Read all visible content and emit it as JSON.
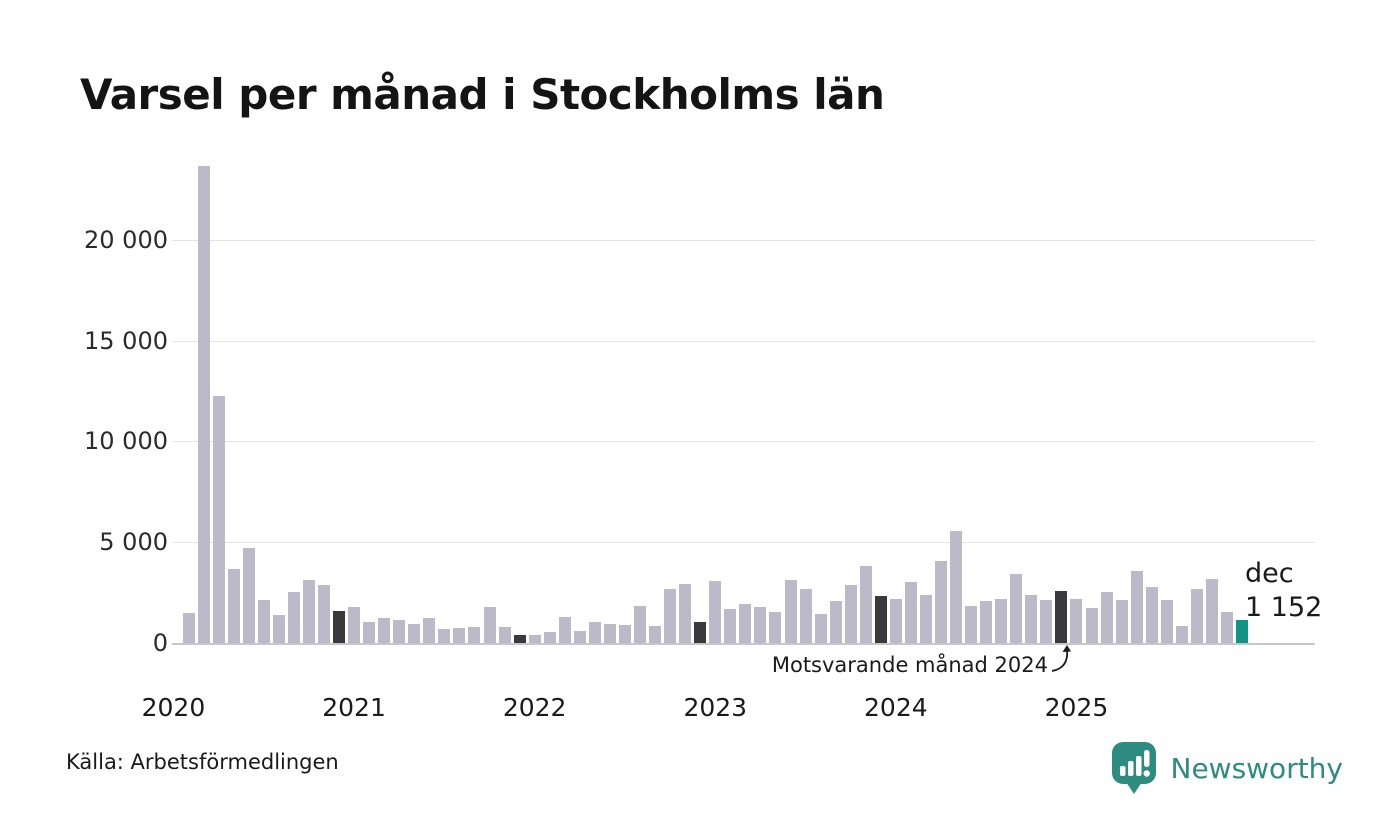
{
  "title": "Varsel per månad i Stockholms län",
  "source": "Källa: Arbetsförmedlingen",
  "brand": {
    "name": "Newsworthy"
  },
  "annotation": {
    "text": "Motsvarande månad 2024"
  },
  "colors": {
    "bar": "#bcbac8",
    "dark": "#3a393e",
    "accent": "#119484",
    "brand": "#2e8b80",
    "grid": "#e4e4e7",
    "baseline": "#c6c6cc"
  },
  "chart_data": {
    "type": "bar",
    "title": "Varsel per månad i Stockholms län",
    "xlabel": "",
    "ylabel": "",
    "ylim": [
      0,
      24000
    ],
    "yticks": [
      0,
      5000,
      10000,
      15000,
      20000
    ],
    "ytick_labels": [
      "0",
      "5 000",
      "10 000",
      "15 000",
      "20 000"
    ],
    "grid": "horizontal",
    "legend": "none",
    "highlight_note": "dark bars = december each year; teal bar = latest month (dec 2025)",
    "last_point_label": {
      "line1": "dec",
      "line2": "1 152"
    },
    "year_ticks": [
      {
        "label": "2020",
        "jan_index": -1
      },
      {
        "label": "2021",
        "jan_index": 11
      },
      {
        "label": "2022",
        "jan_index": 23
      },
      {
        "label": "2023",
        "jan_index": 35
      },
      {
        "label": "2024",
        "jan_index": 47
      },
      {
        "label": "2025",
        "jan_index": 59
      }
    ],
    "months": [
      {
        "month": "2020-feb",
        "value": 1500,
        "kind": "normal"
      },
      {
        "month": "2020-mar",
        "value": 23650,
        "kind": "normal"
      },
      {
        "month": "2020-apr",
        "value": 12250,
        "kind": "normal"
      },
      {
        "month": "2020-maj",
        "value": 3650,
        "kind": "normal"
      },
      {
        "month": "2020-jun",
        "value": 4700,
        "kind": "normal"
      },
      {
        "month": "2020-jul",
        "value": 2150,
        "kind": "normal"
      },
      {
        "month": "2020-aug",
        "value": 1400,
        "kind": "normal"
      },
      {
        "month": "2020-sep",
        "value": 2550,
        "kind": "normal"
      },
      {
        "month": "2020-okt",
        "value": 3150,
        "kind": "normal"
      },
      {
        "month": "2020-nov",
        "value": 2900,
        "kind": "normal"
      },
      {
        "month": "2020-dec",
        "value": 1600,
        "kind": "december"
      },
      {
        "month": "2021-jan",
        "value": 1800,
        "kind": "normal"
      },
      {
        "month": "2021-feb",
        "value": 1050,
        "kind": "normal"
      },
      {
        "month": "2021-mar",
        "value": 1250,
        "kind": "normal"
      },
      {
        "month": "2021-apr",
        "value": 1150,
        "kind": "normal"
      },
      {
        "month": "2021-maj",
        "value": 950,
        "kind": "normal"
      },
      {
        "month": "2021-jun",
        "value": 1250,
        "kind": "normal"
      },
      {
        "month": "2021-jul",
        "value": 700,
        "kind": "normal"
      },
      {
        "month": "2021-aug",
        "value": 750,
        "kind": "normal"
      },
      {
        "month": "2021-sep",
        "value": 770,
        "kind": "normal"
      },
      {
        "month": "2021-okt",
        "value": 1780,
        "kind": "normal"
      },
      {
        "month": "2021-nov",
        "value": 790,
        "kind": "normal"
      },
      {
        "month": "2021-dec",
        "value": 410,
        "kind": "december"
      },
      {
        "month": "2022-jan",
        "value": 410,
        "kind": "normal"
      },
      {
        "month": "2022-feb",
        "value": 560,
        "kind": "normal"
      },
      {
        "month": "2022-mar",
        "value": 1290,
        "kind": "normal"
      },
      {
        "month": "2022-apr",
        "value": 600,
        "kind": "normal"
      },
      {
        "month": "2022-maj",
        "value": 1060,
        "kind": "normal"
      },
      {
        "month": "2022-jun",
        "value": 950,
        "kind": "normal"
      },
      {
        "month": "2022-jul",
        "value": 900,
        "kind": "normal"
      },
      {
        "month": "2022-aug",
        "value": 1850,
        "kind": "normal"
      },
      {
        "month": "2022-sep",
        "value": 820,
        "kind": "normal"
      },
      {
        "month": "2022-okt",
        "value": 2700,
        "kind": "normal"
      },
      {
        "month": "2022-nov",
        "value": 2930,
        "kind": "normal"
      },
      {
        "month": "2022-dec",
        "value": 1020,
        "kind": "december"
      },
      {
        "month": "2023-jan",
        "value": 3100,
        "kind": "normal"
      },
      {
        "month": "2023-feb",
        "value": 1700,
        "kind": "normal"
      },
      {
        "month": "2023-mar",
        "value": 1930,
        "kind": "normal"
      },
      {
        "month": "2023-apr",
        "value": 1800,
        "kind": "normal"
      },
      {
        "month": "2023-maj",
        "value": 1560,
        "kind": "normal"
      },
      {
        "month": "2023-jun",
        "value": 3130,
        "kind": "normal"
      },
      {
        "month": "2023-jul",
        "value": 2700,
        "kind": "normal"
      },
      {
        "month": "2023-aug",
        "value": 1450,
        "kind": "normal"
      },
      {
        "month": "2023-sep",
        "value": 2100,
        "kind": "normal"
      },
      {
        "month": "2023-okt",
        "value": 2900,
        "kind": "normal"
      },
      {
        "month": "2023-nov",
        "value": 3840,
        "kind": "normal"
      },
      {
        "month": "2023-dec",
        "value": 2310,
        "kind": "december"
      },
      {
        "month": "2024-jan",
        "value": 2180,
        "kind": "normal"
      },
      {
        "month": "2024-feb",
        "value": 3050,
        "kind": "normal"
      },
      {
        "month": "2024-mar",
        "value": 2390,
        "kind": "normal"
      },
      {
        "month": "2024-apr",
        "value": 4090,
        "kind": "normal"
      },
      {
        "month": "2024-maj",
        "value": 5540,
        "kind": "normal"
      },
      {
        "month": "2024-jun",
        "value": 1850,
        "kind": "normal"
      },
      {
        "month": "2024-jul",
        "value": 2100,
        "kind": "normal"
      },
      {
        "month": "2024-aug",
        "value": 2190,
        "kind": "normal"
      },
      {
        "month": "2024-sep",
        "value": 3420,
        "kind": "normal"
      },
      {
        "month": "2024-okt",
        "value": 2390,
        "kind": "normal"
      },
      {
        "month": "2024-nov",
        "value": 2150,
        "kind": "normal"
      },
      {
        "month": "2024-dec",
        "value": 2590,
        "kind": "december"
      },
      {
        "month": "2025-jan",
        "value": 2180,
        "kind": "normal"
      },
      {
        "month": "2025-feb",
        "value": 1740,
        "kind": "normal"
      },
      {
        "month": "2025-mar",
        "value": 2520,
        "kind": "normal"
      },
      {
        "month": "2025-apr",
        "value": 2110,
        "kind": "normal"
      },
      {
        "month": "2025-maj",
        "value": 3550,
        "kind": "normal"
      },
      {
        "month": "2025-jun",
        "value": 2770,
        "kind": "normal"
      },
      {
        "month": "2025-jul",
        "value": 2140,
        "kind": "normal"
      },
      {
        "month": "2025-aug",
        "value": 820,
        "kind": "normal"
      },
      {
        "month": "2025-sep",
        "value": 2690,
        "kind": "normal"
      },
      {
        "month": "2025-okt",
        "value": 3200,
        "kind": "normal"
      },
      {
        "month": "2025-nov",
        "value": 1520,
        "kind": "normal"
      },
      {
        "month": "2025-dec",
        "value": 1152,
        "kind": "current"
      }
    ]
  }
}
